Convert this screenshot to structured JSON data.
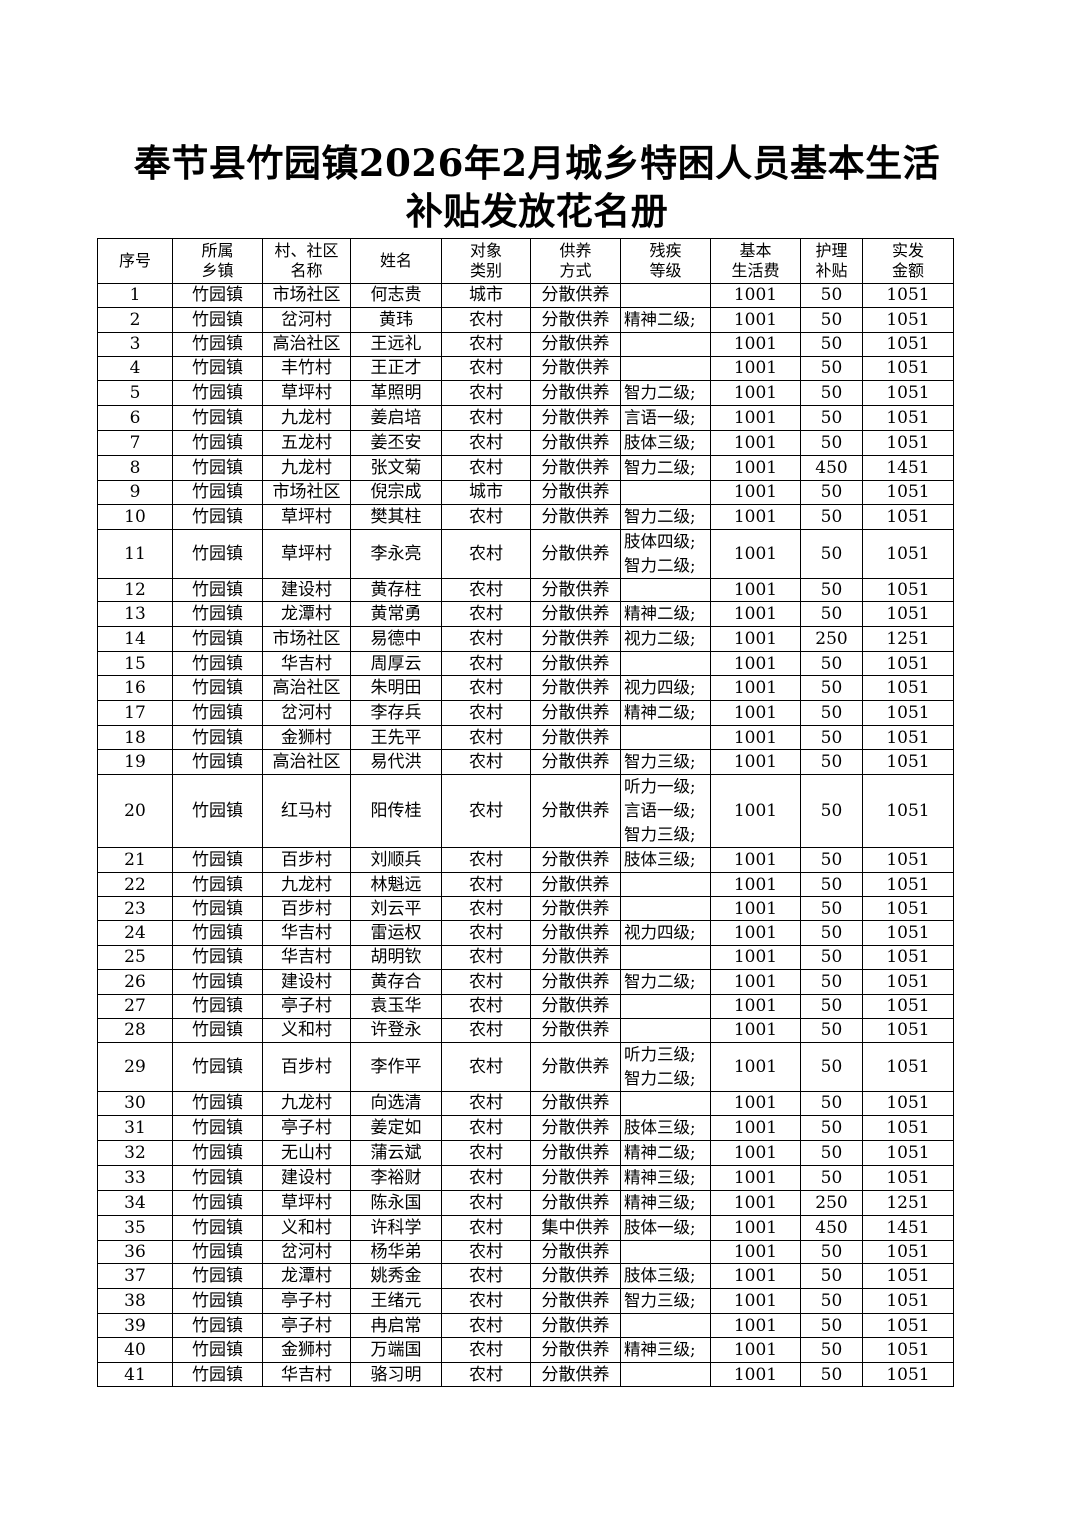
{
  "title_line1": "奉节县竹园镇2026年2月城乡特困人员基本生活",
  "title_line2": "补贴发放花名册",
  "headers": [
    [
      "序号"
    ],
    [
      "所属",
      "乡镇"
    ],
    [
      "村、社区",
      "名称"
    ],
    [
      "姓名"
    ],
    [
      "对象",
      "类别"
    ],
    [
      "供养",
      "方式"
    ],
    [
      "残疾",
      "等级"
    ],
    [
      "基本",
      "生活费"
    ],
    [
      "护理",
      "补贴"
    ],
    [
      "实发",
      "金额"
    ]
  ],
  "rows": [
    [
      "1",
      "竹园镇",
      "市场社区",
      "何志贵",
      "城市",
      "分散供养",
      [],
      "1001",
      "50",
      "1051"
    ],
    [
      "2",
      "竹园镇",
      "岔河村",
      "黄玮",
      "农村",
      "分散供养",
      [
        "精神二级;"
      ],
      "1001",
      "50",
      "1051"
    ],
    [
      "3",
      "竹园镇",
      "高治社区",
      "王远礼",
      "农村",
      "分散供养",
      [],
      "1001",
      "50",
      "1051"
    ],
    [
      "4",
      "竹园镇",
      "丰竹村",
      "王正才",
      "农村",
      "分散供养",
      [],
      "1001",
      "50",
      "1051"
    ],
    [
      "5",
      "竹园镇",
      "草坪村",
      "革照明",
      "农村",
      "分散供养",
      [
        "智力二级;"
      ],
      "1001",
      "50",
      "1051"
    ],
    [
      "6",
      "竹园镇",
      "九龙村",
      "姜启培",
      "农村",
      "分散供养",
      [
        "言语一级;"
      ],
      "1001",
      "50",
      "1051"
    ],
    [
      "7",
      "竹园镇",
      "五龙村",
      "姜丕安",
      "农村",
      "分散供养",
      [
        "肢体三级;"
      ],
      "1001",
      "50",
      "1051"
    ],
    [
      "8",
      "竹园镇",
      "九龙村",
      "张文菊",
      "农村",
      "分散供养",
      [
        "智力二级;"
      ],
      "1001",
      "450",
      "1451"
    ],
    [
      "9",
      "竹园镇",
      "市场社区",
      "倪宗成",
      "城市",
      "分散供养",
      [],
      "1001",
      "50",
      "1051"
    ],
    [
      "10",
      "竹园镇",
      "草坪村",
      "樊其柱",
      "农村",
      "分散供养",
      [
        "智力二级;"
      ],
      "1001",
      "50",
      "1051"
    ],
    [
      "11",
      "竹园镇",
      "草坪村",
      "李永亮",
      "农村",
      "分散供养",
      [
        "肢体四级;",
        "智力二级;"
      ],
      "1001",
      "50",
      "1051"
    ],
    [
      "12",
      "竹园镇",
      "建设村",
      "黄存柱",
      "农村",
      "分散供养",
      [],
      "1001",
      "50",
      "1051"
    ],
    [
      "13",
      "竹园镇",
      "龙潭村",
      "黄常勇",
      "农村",
      "分散供养",
      [
        "精神二级;"
      ],
      "1001",
      "50",
      "1051"
    ],
    [
      "14",
      "竹园镇",
      "市场社区",
      "易德中",
      "农村",
      "分散供养",
      [
        "视力二级;"
      ],
      "1001",
      "250",
      "1251"
    ],
    [
      "15",
      "竹园镇",
      "华吉村",
      "周厚云",
      "农村",
      "分散供养",
      [],
      "1001",
      "50",
      "1051"
    ],
    [
      "16",
      "竹园镇",
      "高治社区",
      "朱明田",
      "农村",
      "分散供养",
      [
        "视力四级;"
      ],
      "1001",
      "50",
      "1051"
    ],
    [
      "17",
      "竹园镇",
      "岔河村",
      "李存兵",
      "农村",
      "分散供养",
      [
        "精神二级;"
      ],
      "1001",
      "50",
      "1051"
    ],
    [
      "18",
      "竹园镇",
      "金狮村",
      "王先平",
      "农村",
      "分散供养",
      [],
      "1001",
      "50",
      "1051"
    ],
    [
      "19",
      "竹园镇",
      "高治社区",
      "易代洪",
      "农村",
      "分散供养",
      [
        "智力三级;"
      ],
      "1001",
      "50",
      "1051"
    ],
    [
      "20",
      "竹园镇",
      "红马村",
      "阳传桂",
      "农村",
      "分散供养",
      [
        "听力一级;",
        "言语一级;",
        "智力三级;"
      ],
      "1001",
      "50",
      "1051"
    ],
    [
      "21",
      "竹园镇",
      "百步村",
      "刘顺兵",
      "农村",
      "分散供养",
      [
        "肢体三级;"
      ],
      "1001",
      "50",
      "1051"
    ],
    [
      "22",
      "竹园镇",
      "九龙村",
      "林魁远",
      "农村",
      "分散供养",
      [],
      "1001",
      "50",
      "1051"
    ],
    [
      "23",
      "竹园镇",
      "百步村",
      "刘云平",
      "农村",
      "分散供养",
      [],
      "1001",
      "50",
      "1051"
    ],
    [
      "24",
      "竹园镇",
      "华吉村",
      "雷运权",
      "农村",
      "分散供养",
      [
        "视力四级;"
      ],
      "1001",
      "50",
      "1051"
    ],
    [
      "25",
      "竹园镇",
      "华吉村",
      "胡明钦",
      "农村",
      "分散供养",
      [],
      "1001",
      "50",
      "1051"
    ],
    [
      "26",
      "竹园镇",
      "建设村",
      "黄存合",
      "农村",
      "分散供养",
      [
        "智力二级;"
      ],
      "1001",
      "50",
      "1051"
    ],
    [
      "27",
      "竹园镇",
      "亭子村",
      "袁玉华",
      "农村",
      "分散供养",
      [],
      "1001",
      "50",
      "1051"
    ],
    [
      "28",
      "竹园镇",
      "义和村",
      "许登永",
      "农村",
      "分散供养",
      [],
      "1001",
      "50",
      "1051"
    ],
    [
      "29",
      "竹园镇",
      "百步村",
      "李作平",
      "农村",
      "分散供养",
      [
        "听力三级;",
        "智力二级;"
      ],
      "1001",
      "50",
      "1051"
    ],
    [
      "30",
      "竹园镇",
      "九龙村",
      "向选清",
      "农村",
      "分散供养",
      [],
      "1001",
      "50",
      "1051"
    ],
    [
      "31",
      "竹园镇",
      "亭子村",
      "姜定如",
      "农村",
      "分散供养",
      [
        "肢体三级;"
      ],
      "1001",
      "50",
      "1051"
    ],
    [
      "32",
      "竹园镇",
      "无山村",
      "蒲云斌",
      "农村",
      "分散供养",
      [
        "精神二级;"
      ],
      "1001",
      "50",
      "1051"
    ],
    [
      "33",
      "竹园镇",
      "建设村",
      "李裕财",
      "农村",
      "分散供养",
      [
        "精神三级;"
      ],
      "1001",
      "50",
      "1051"
    ],
    [
      "34",
      "竹园镇",
      "草坪村",
      "陈永国",
      "农村",
      "分散供养",
      [
        "精神三级;"
      ],
      "1001",
      "250",
      "1251"
    ],
    [
      "35",
      "竹园镇",
      "义和村",
      "许科学",
      "农村",
      "集中供养",
      [
        "肢体一级;"
      ],
      "1001",
      "450",
      "1451"
    ],
    [
      "36",
      "竹园镇",
      "岔河村",
      "杨华弟",
      "农村",
      "分散供养",
      [],
      "1001",
      "50",
      "1051"
    ],
    [
      "37",
      "竹园镇",
      "龙潭村",
      "姚秀金",
      "农村",
      "分散供养",
      [
        "肢体三级;"
      ],
      "1001",
      "50",
      "1051"
    ],
    [
      "38",
      "竹园镇",
      "亭子村",
      "王绪元",
      "农村",
      "分散供养",
      [
        "智力三级;"
      ],
      "1001",
      "50",
      "1051"
    ],
    [
      "39",
      "竹园镇",
      "亭子村",
      "冉启常",
      "农村",
      "分散供养",
      [],
      "1001",
      "50",
      "1051"
    ],
    [
      "40",
      "竹园镇",
      "金狮村",
      "万端国",
      "农村",
      "分散供养",
      [
        "精神三级;"
      ],
      "1001",
      "50",
      "1051"
    ],
    [
      "41",
      "竹园镇",
      "华吉村",
      "骆习明",
      "农村",
      "分散供养",
      [],
      "1001",
      "50",
      "1051"
    ]
  ]
}
